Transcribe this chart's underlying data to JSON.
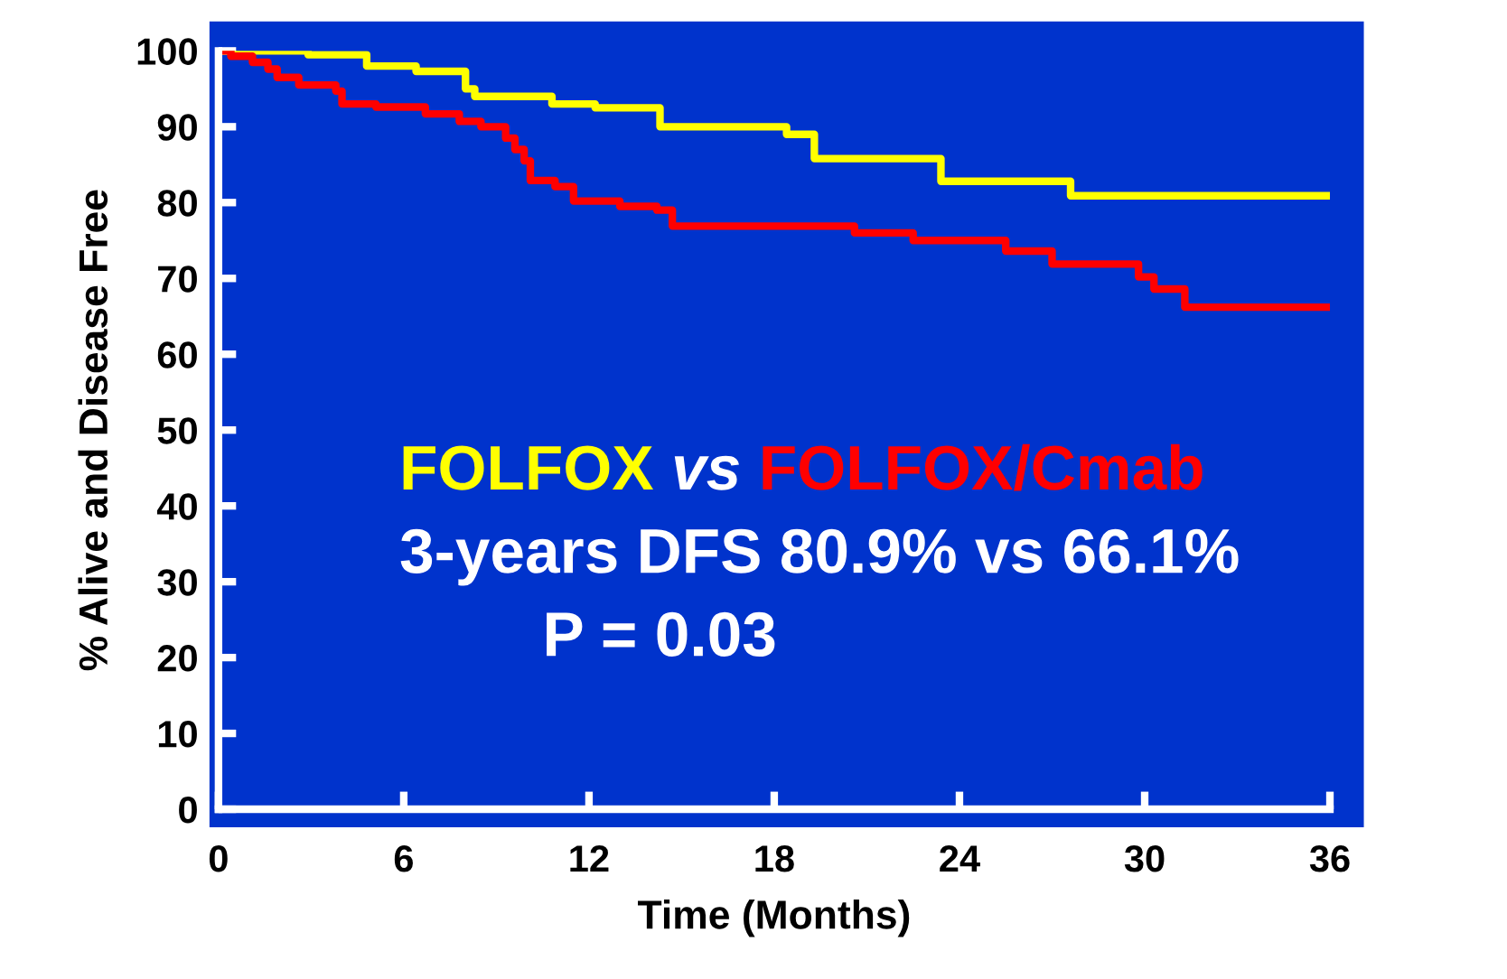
{
  "chart_data": {
    "type": "step",
    "xlabel": "Time (Months)",
    "ylabel": "% Alive and Disease Free",
    "xlim": [
      0,
      36
    ],
    "ylim": [
      0,
      100
    ],
    "xticks": [
      0,
      6,
      12,
      18,
      24,
      30,
      36
    ],
    "yticks": [
      0,
      10,
      20,
      30,
      40,
      50,
      60,
      70,
      80,
      90,
      100
    ],
    "grid": false,
    "legend": false,
    "series": [
      {
        "name": "FOLFOX",
        "color": "#ffff00",
        "x": [
          0,
          2.9,
          4.8,
          6.4,
          8.0,
          8.3,
          10.8,
          12.2,
          14.3,
          18.4,
          19.3,
          23.4,
          27.6,
          36
        ],
        "values": [
          100,
          99.5,
          98,
          97.3,
          95,
          94,
          93,
          92.5,
          90,
          89,
          85.8,
          82.8,
          80.9,
          80.9
        ]
      },
      {
        "name": "FOLFOX/Cmab",
        "color": "#ff0000",
        "x": [
          0,
          0.4,
          1.1,
          1.6,
          1.9,
          2.6,
          3.8,
          4.0,
          5.1,
          6.7,
          7.8,
          8.5,
          9.3,
          9.6,
          9.9,
          10.1,
          10.9,
          11.5,
          13.0,
          14.2,
          14.7,
          20.6,
          22.5,
          25.5,
          27.0,
          29.8,
          30.3,
          31.3,
          36
        ],
        "values": [
          100,
          99.3,
          98.5,
          97.6,
          96.5,
          95.5,
          94.7,
          93,
          92.6,
          91.7,
          90.7,
          90,
          88.5,
          87,
          85.5,
          82.9,
          82.1,
          80.2,
          79.5,
          79,
          76.9,
          76,
          75,
          73.6,
          71.9,
          70.2,
          68.6,
          66.2,
          66.2
        ]
      }
    ],
    "annotations": [
      "vs",
      "3-years DFS 80.9% vs 66.1%",
      "P = 0.03"
    ]
  }
}
